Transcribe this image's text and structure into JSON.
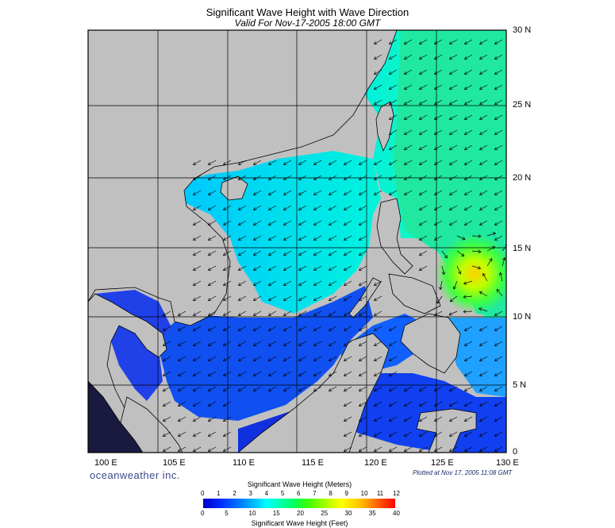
{
  "title": "Significant Wave Height with Wave Direction",
  "subtitle": "Valid For Nov-17-2005 18:00 GMT",
  "lon_labels": [
    "100 E",
    "105 E",
    "110 E",
    "115 E",
    "120 E",
    "125 E",
    "130 E"
  ],
  "lat_labels": [
    "30 N",
    "25 N",
    "20 N",
    "15 N",
    "10 N",
    "5 N",
    "0"
  ],
  "brand": "oceanweather inc.",
  "plotted": "Plotted at Nov 17, 2005 11:08 GMT",
  "colorbar": {
    "meters_title": "Significant Wave Height (Meters)",
    "feet_title": "Significant Wave Height (Feet)",
    "meters_ticks": [
      "0",
      "1",
      "2",
      "3",
      "4",
      "5",
      "6",
      "7",
      "8",
      "9",
      "10",
      "11",
      "12"
    ],
    "feet_ticks": [
      "0",
      "5",
      "10",
      "15",
      "20",
      "25",
      "30",
      "35",
      "40"
    ]
  },
  "colors": {
    "land": "#c0c0c0",
    "deep_blue": "#0020e0",
    "mid_blue": "#0080ff",
    "cyan": "#00e8ff",
    "green": "#00ff80",
    "yellow": "#ffff00",
    "red": "#ff0000"
  }
}
